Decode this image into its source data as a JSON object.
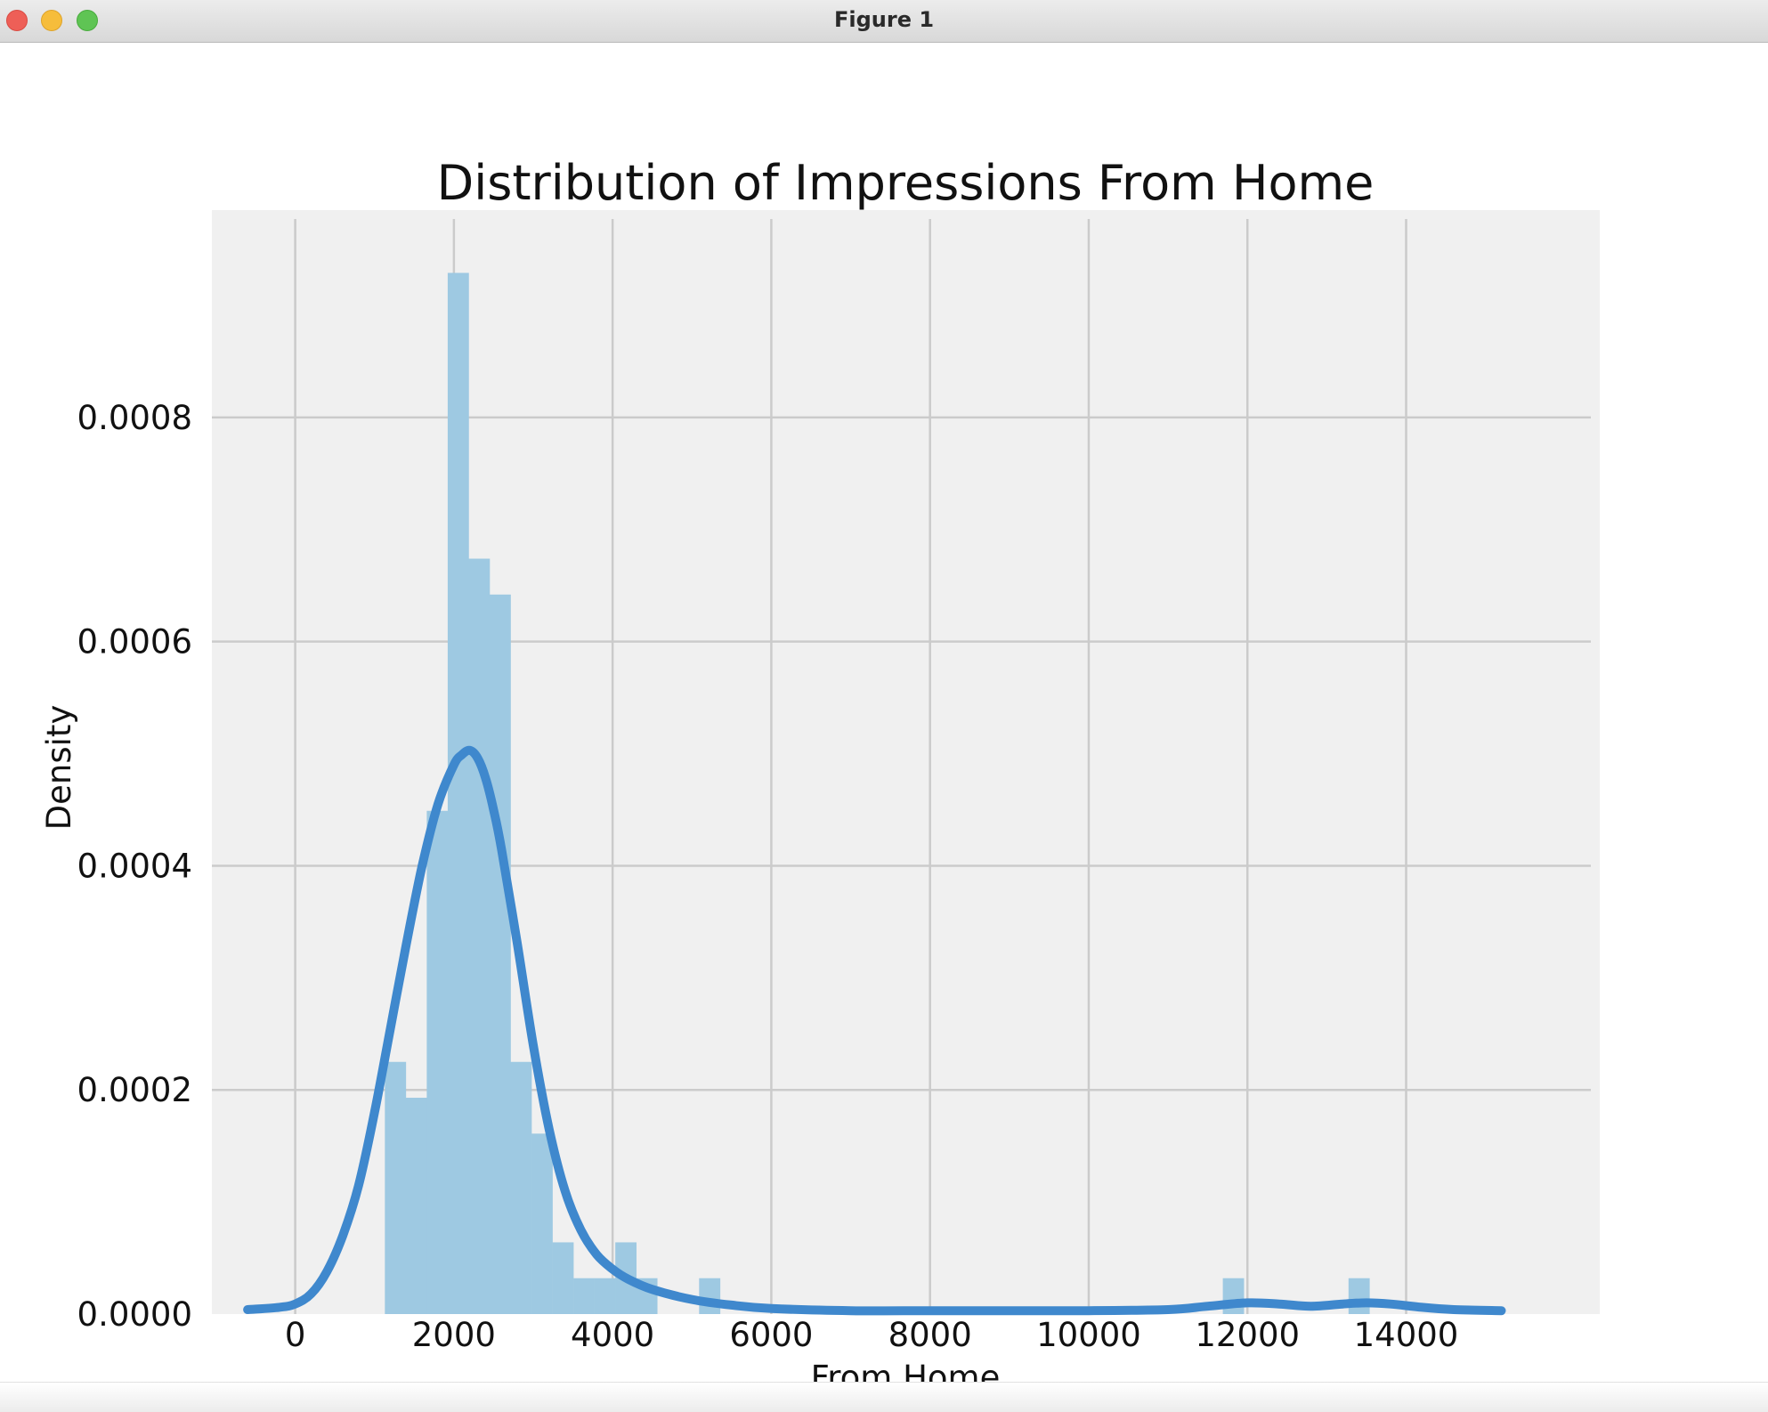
{
  "window": {
    "title": "Figure 1"
  },
  "chart_data": {
    "type": "bar",
    "title": "Distribution of Impressions From Home",
    "xlabel": "From Home",
    "ylabel": "Density",
    "xlim": [
      -1050,
      16440
    ],
    "ylim": [
      0,
      0.000985
    ],
    "xticks": [
      0,
      2000,
      4000,
      6000,
      8000,
      10000,
      12000,
      14000
    ],
    "xtick_labels": [
      "0",
      "2000",
      "4000",
      "6000",
      "8000",
      "10000",
      "12000",
      "14000"
    ],
    "yticks": [
      0,
      0.0002,
      0.0004,
      0.0006,
      0.0008
    ],
    "ytick_labels": [
      "0.0000",
      "0.0002",
      "0.0004",
      "0.0006",
      "0.0008"
    ],
    "grid": true,
    "background_color": "#f0f0f0",
    "histogram": {
      "color": "#9ec9e2",
      "bin_width": 264,
      "bins": [
        {
          "x0": 1130,
          "density": 0.000225
        },
        {
          "x0": 1394,
          "density": 0.000193
        },
        {
          "x0": 1658,
          "density": 0.000449
        },
        {
          "x0": 1922,
          "density": 0.000929
        },
        {
          "x0": 2186,
          "density": 0.000674
        },
        {
          "x0": 2450,
          "density": 0.000642
        },
        {
          "x0": 2714,
          "density": 0.000225
        },
        {
          "x0": 2978,
          "density": 0.000161
        },
        {
          "x0": 3242,
          "density": 6.4e-05
        },
        {
          "x0": 3506,
          "density": 3.2e-05
        },
        {
          "x0": 3770,
          "density": 3.2e-05
        },
        {
          "x0": 4034,
          "density": 6.4e-05
        },
        {
          "x0": 4298,
          "density": 3.2e-05
        },
        {
          "x0": 5090,
          "density": 3.2e-05
        },
        {
          "x0": 11690,
          "density": 3.2e-05
        },
        {
          "x0": 13274,
          "density": 3.2e-05
        }
      ]
    },
    "kde": {
      "color": "#3f88cd",
      "x": [
        -600,
        -200,
        0,
        200,
        400,
        600,
        800,
        1000,
        1200,
        1400,
        1600,
        1800,
        2000,
        2100,
        2200,
        2300,
        2400,
        2500,
        2600,
        2800,
        3000,
        3200,
        3400,
        3600,
        3800,
        4000,
        4200,
        4500,
        5000,
        5500,
        6000,
        7000,
        8000,
        9000,
        10000,
        11000,
        11500,
        12000,
        12400,
        12800,
        13200,
        13500,
        13800,
        14200,
        14600,
        15200
      ],
      "y": [
        4e-06,
        6e-06,
        9e-06,
        1.8e-05,
        3.8e-05,
        7e-05,
        0.000115,
        0.00018,
        0.000255,
        0.00033,
        0.0004,
        0.000455,
        0.00049,
        0.000499,
        0.000503,
        0.000496,
        0.000478,
        0.00045,
        0.000415,
        0.00033,
        0.00024,
        0.000165,
        0.00011,
        7.5e-05,
        5.3e-05,
        4e-05,
        3.1e-05,
        2.2e-05,
        1.3e-05,
        8e-06,
        5e-06,
        3e-06,
        3e-06,
        3e-06,
        3e-06,
        4e-06,
        7e-06,
        1e-05,
        9e-06,
        7e-06,
        9e-06,
        1e-05,
        9e-06,
        6e-06,
        4e-06,
        3e-06
      ]
    }
  }
}
